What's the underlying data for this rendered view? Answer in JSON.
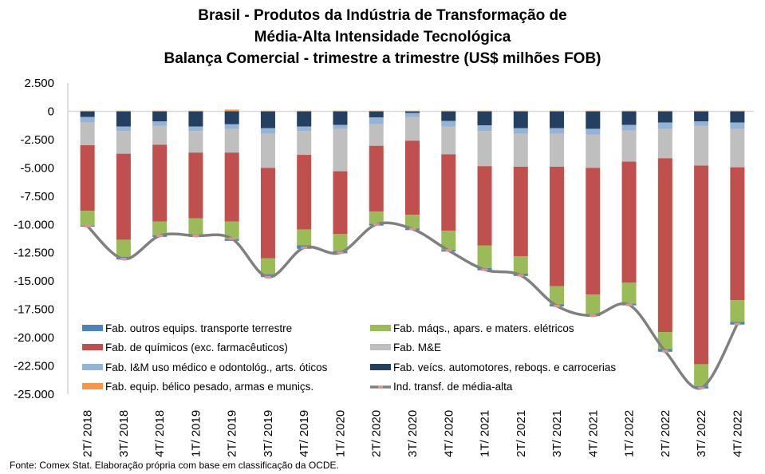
{
  "chart_data": {
    "type": "bar",
    "stacked": true,
    "title_lines": [
      "Brasil - Produtos da Indústria de Transformação de",
      "Média-Alta Intensidade Tecnológica",
      "Balança Comercial - trimestre a trimestre (US$ milhões FOB)"
    ],
    "xlabel": "",
    "ylabel": "",
    "ylim": [
      -25000,
      2500
    ],
    "yticks": [
      2500,
      0,
      -2500,
      -5000,
      -7500,
      -10000,
      -12500,
      -15000,
      -17500,
      -20000,
      -22500,
      -25000
    ],
    "ytick_labels": [
      "2.500",
      "0",
      "-2.500",
      "-5.000",
      "-7.500",
      "-10.000",
      "-12.500",
      "-15.000",
      "-17.500",
      "-20.000",
      "-22.500",
      "-25.000"
    ],
    "grid": false,
    "legend_position": "bottom-inside",
    "categories": [
      "2T/ 2018",
      "3T/ 2018",
      "4T/ 2018",
      "1T/ 2019",
      "2T/ 2019",
      "3T/ 2019",
      "4T/ 2019",
      "1T/ 2020",
      "2T/ 2020",
      "3T/ 2020",
      "4T/ 2020",
      "1T/ 2021",
      "2T/ 2021",
      "3T/ 2021",
      "4T/ 2021",
      "1T/ 2022",
      "2T/ 2022",
      "3T/ 2022",
      "4T/ 2022"
    ],
    "series": [
      {
        "name": "Fab. veícs. automotores, reboqs. e carrocerias",
        "color": "#243F60",
        "type": "bar",
        "values": [
          -500,
          -1350,
          -900,
          -1350,
          -1150,
          -1500,
          -1350,
          -1200,
          -550,
          -150,
          -850,
          -1250,
          -1500,
          -1500,
          -1550,
          -1200,
          -1000,
          -900,
          -1000
        ]
      },
      {
        "name": "Fab. I&M uso médico e odontológ., arts. óticos",
        "color": "#95B3D7",
        "type": "bar",
        "values": [
          -500,
          -400,
          -400,
          -400,
          -400,
          -500,
          -400,
          -350,
          -600,
          -350,
          -500,
          -500,
          -500,
          -500,
          -500,
          -500,
          -550,
          -400,
          -550
        ]
      },
      {
        "name": "Fab. M&E",
        "color": "#BFBFBF",
        "type": "bar",
        "values": [
          -2000,
          -2000,
          -1650,
          -1900,
          -2100,
          -3000,
          -2100,
          -3750,
          -1900,
          -2100,
          -2450,
          -3100,
          -2900,
          -2900,
          -2950,
          -2750,
          -2600,
          -3500,
          -3400
        ]
      },
      {
        "name": "Fab. de químicos (exc. farmacêuticos)",
        "color": "#C0504D",
        "type": "bar",
        "values": [
          -5800,
          -7600,
          -6800,
          -5800,
          -6100,
          -8000,
          -6600,
          -5550,
          -5800,
          -6550,
          -6750,
          -7000,
          -7900,
          -10550,
          -11200,
          -10700,
          -15350,
          -17550,
          -11750
        ]
      },
      {
        "name": "Fab. máqs., apars. e maters. elétricos",
        "color": "#9BBB59",
        "type": "bar",
        "values": [
          -1300,
          -1500,
          -1200,
          -1550,
          -1550,
          -1400,
          -1400,
          -1500,
          -1100,
          -1200,
          -1700,
          -2000,
          -1550,
          -1600,
          -1750,
          -1850,
          -1500,
          -1950,
          -1900
        ]
      },
      {
        "name": "Fab. outros equips. transporte terrestre",
        "color": "#4F81BD",
        "type": "bar",
        "values": [
          -100,
          -250,
          -150,
          -100,
          -150,
          -250,
          -300,
          -200,
          -150,
          -150,
          -150,
          -200,
          -200,
          -200,
          -150,
          -150,
          -250,
          -200,
          -250
        ]
      },
      {
        "name": "Fab. equip. bélico pesado, armas e muniçs.",
        "color": "#F79646",
        "type": "bar",
        "values": [
          50,
          50,
          50,
          50,
          150,
          50,
          50,
          50,
          50,
          50,
          50,
          50,
          50,
          50,
          50,
          50,
          50,
          50,
          50
        ]
      },
      {
        "name": "Ind. transf. de média-alta",
        "color": "#808080",
        "type": "line",
        "marker_color": "#D99694",
        "values": [
          -10150,
          -13050,
          -11000,
          -11000,
          -11250,
          -14650,
          -12050,
          -12500,
          -10000,
          -10400,
          -12300,
          -14000,
          -14500,
          -17200,
          -18050,
          -17100,
          -21200,
          -24450,
          -18800
        ]
      }
    ]
  },
  "legend": {
    "left": [
      "Fab. outros equips. transporte terrestre",
      "Fab. de químicos (exc. farmacêuticos)",
      "Fab. I&M uso médico e odontológ., arts. óticos",
      "Fab. equip. bélico pesado, armas e muniçs."
    ],
    "right": [
      "Fab. máqs., apars. e maters. elétricos",
      "Fab. M&E",
      "Fab. veícs. automotores, reboqs. e carrocerias",
      "Ind. transf. de média-alta"
    ]
  },
  "source": "Fonte:  Comex Stat. Elaboração própria com base em classificação da OCDE."
}
